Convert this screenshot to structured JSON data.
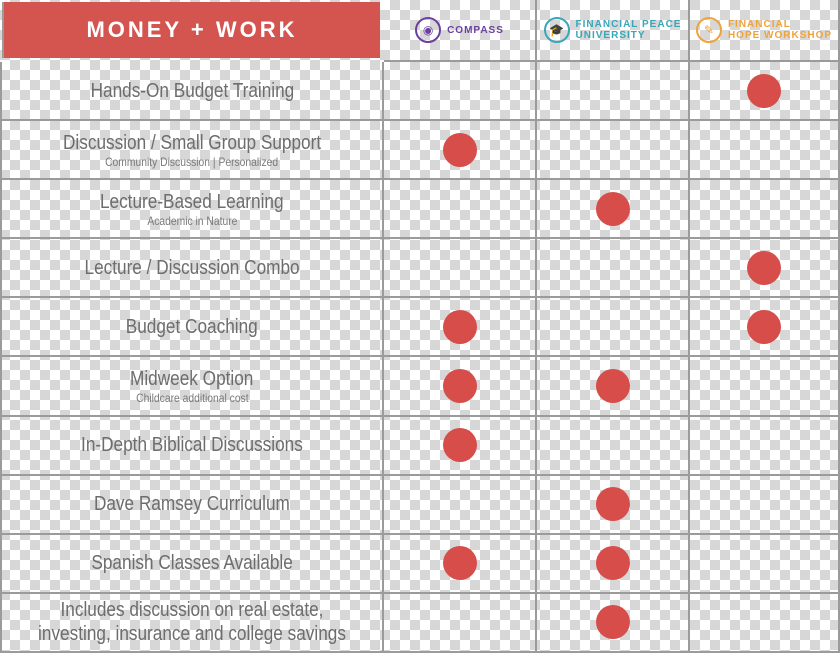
{
  "header": {
    "title": "MONEY + WORK",
    "programs": [
      {
        "name_line1": "COMPASS",
        "name_line2": "",
        "color": "#6a3fa0",
        "icon": "compass-drop-icon",
        "glyph": "◉"
      },
      {
        "name_line1": "FINANCIAL PEACE",
        "name_line2": "UNIVERSITY",
        "color": "#3aa6b9",
        "icon": "graduation-cap-icon",
        "glyph": "🎓"
      },
      {
        "name_line1": "FINANCIAL",
        "name_line2": "HOPE WORKSHOP",
        "color": "#f0a33a",
        "icon": "pencil-note-icon",
        "glyph": "✎"
      }
    ]
  },
  "dot_color": "#d64d49",
  "rows": [
    {
      "main": "Hands-On Budget Training",
      "sub": "",
      "marks": [
        false,
        false,
        true
      ]
    },
    {
      "main": "Discussion / Small Group Support",
      "sub": "Community Discussion | Personalized",
      "marks": [
        true,
        false,
        false
      ]
    },
    {
      "main": "Lecture-Based Learning",
      "sub": "Academic in Nature",
      "marks": [
        false,
        true,
        false
      ]
    },
    {
      "main": "Lecture / Discussion Combo",
      "sub": "",
      "marks": [
        false,
        false,
        true
      ]
    },
    {
      "main": "Budget Coaching",
      "sub": "",
      "marks": [
        true,
        false,
        true
      ]
    },
    {
      "main": "Midweek Option",
      "sub": "Childcare additional cost",
      "marks": [
        true,
        true,
        false
      ]
    },
    {
      "main": "In-Depth Biblical Discussions",
      "sub": "",
      "marks": [
        true,
        false,
        false
      ]
    },
    {
      "main": "Dave Ramsey Curriculum",
      "sub": "",
      "marks": [
        false,
        true,
        false
      ]
    },
    {
      "main": "Spanish Classes Available",
      "sub": "",
      "marks": [
        true,
        true,
        false
      ]
    },
    {
      "main": "Includes discussion on real estate, investing, insurance and college savings",
      "sub": "",
      "marks": [
        false,
        true,
        false
      ]
    }
  ]
}
